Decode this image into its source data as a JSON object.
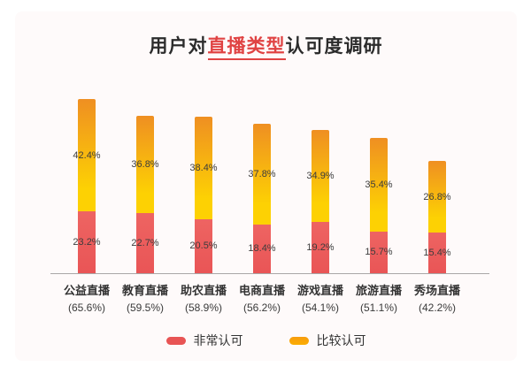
{
  "page": {
    "background": "#FFFFFF",
    "card_background": "#FEFAFA"
  },
  "title": {
    "prefix": "用户对",
    "highlight": "直播类型",
    "suffix": "认可度调研"
  },
  "chart_data": {
    "type": "bar",
    "stacked": true,
    "orientation": "vertical",
    "title": "用户对直播类型认可度调研",
    "categories": [
      "公益直播",
      "教育直播",
      "助农直播",
      "电商直播",
      "游戏直播",
      "旅游直播",
      "秀场直播"
    ],
    "category_totals_percent": [
      65.6,
      59.5,
      58.9,
      56.2,
      54.1,
      51.1,
      42.2
    ],
    "series": [
      {
        "name": "非常认可",
        "position": "bottom",
        "color": "#E95A58",
        "values": [
          23.2,
          22.7,
          20.5,
          18.4,
          19.2,
          15.7,
          15.4
        ]
      },
      {
        "name": "比较认可",
        "position": "top",
        "color": "#FBAD02",
        "values": [
          42.4,
          36.8,
          38.4,
          37.8,
          34.9,
          35.4,
          26.8
        ]
      }
    ],
    "value_suffix": "%",
    "legend_position": "bottom",
    "grid": false,
    "ylim": [
      0,
      70
    ]
  },
  "colors": {
    "card_bg": "#FEFAFA",
    "highlight": "#E04343",
    "text_dark": "#2C2C2C",
    "text_label": "#3C3C3C",
    "axis": "#A9A7A7",
    "bar_red_top": "#EE6462",
    "bar_red_bottom": "#E95556",
    "bar_yellow_top": "#EF8F22",
    "bar_yellow_bottom": "#FDD103",
    "legend_red": "#E85454",
    "legend_yellow": "#FBAD02"
  }
}
